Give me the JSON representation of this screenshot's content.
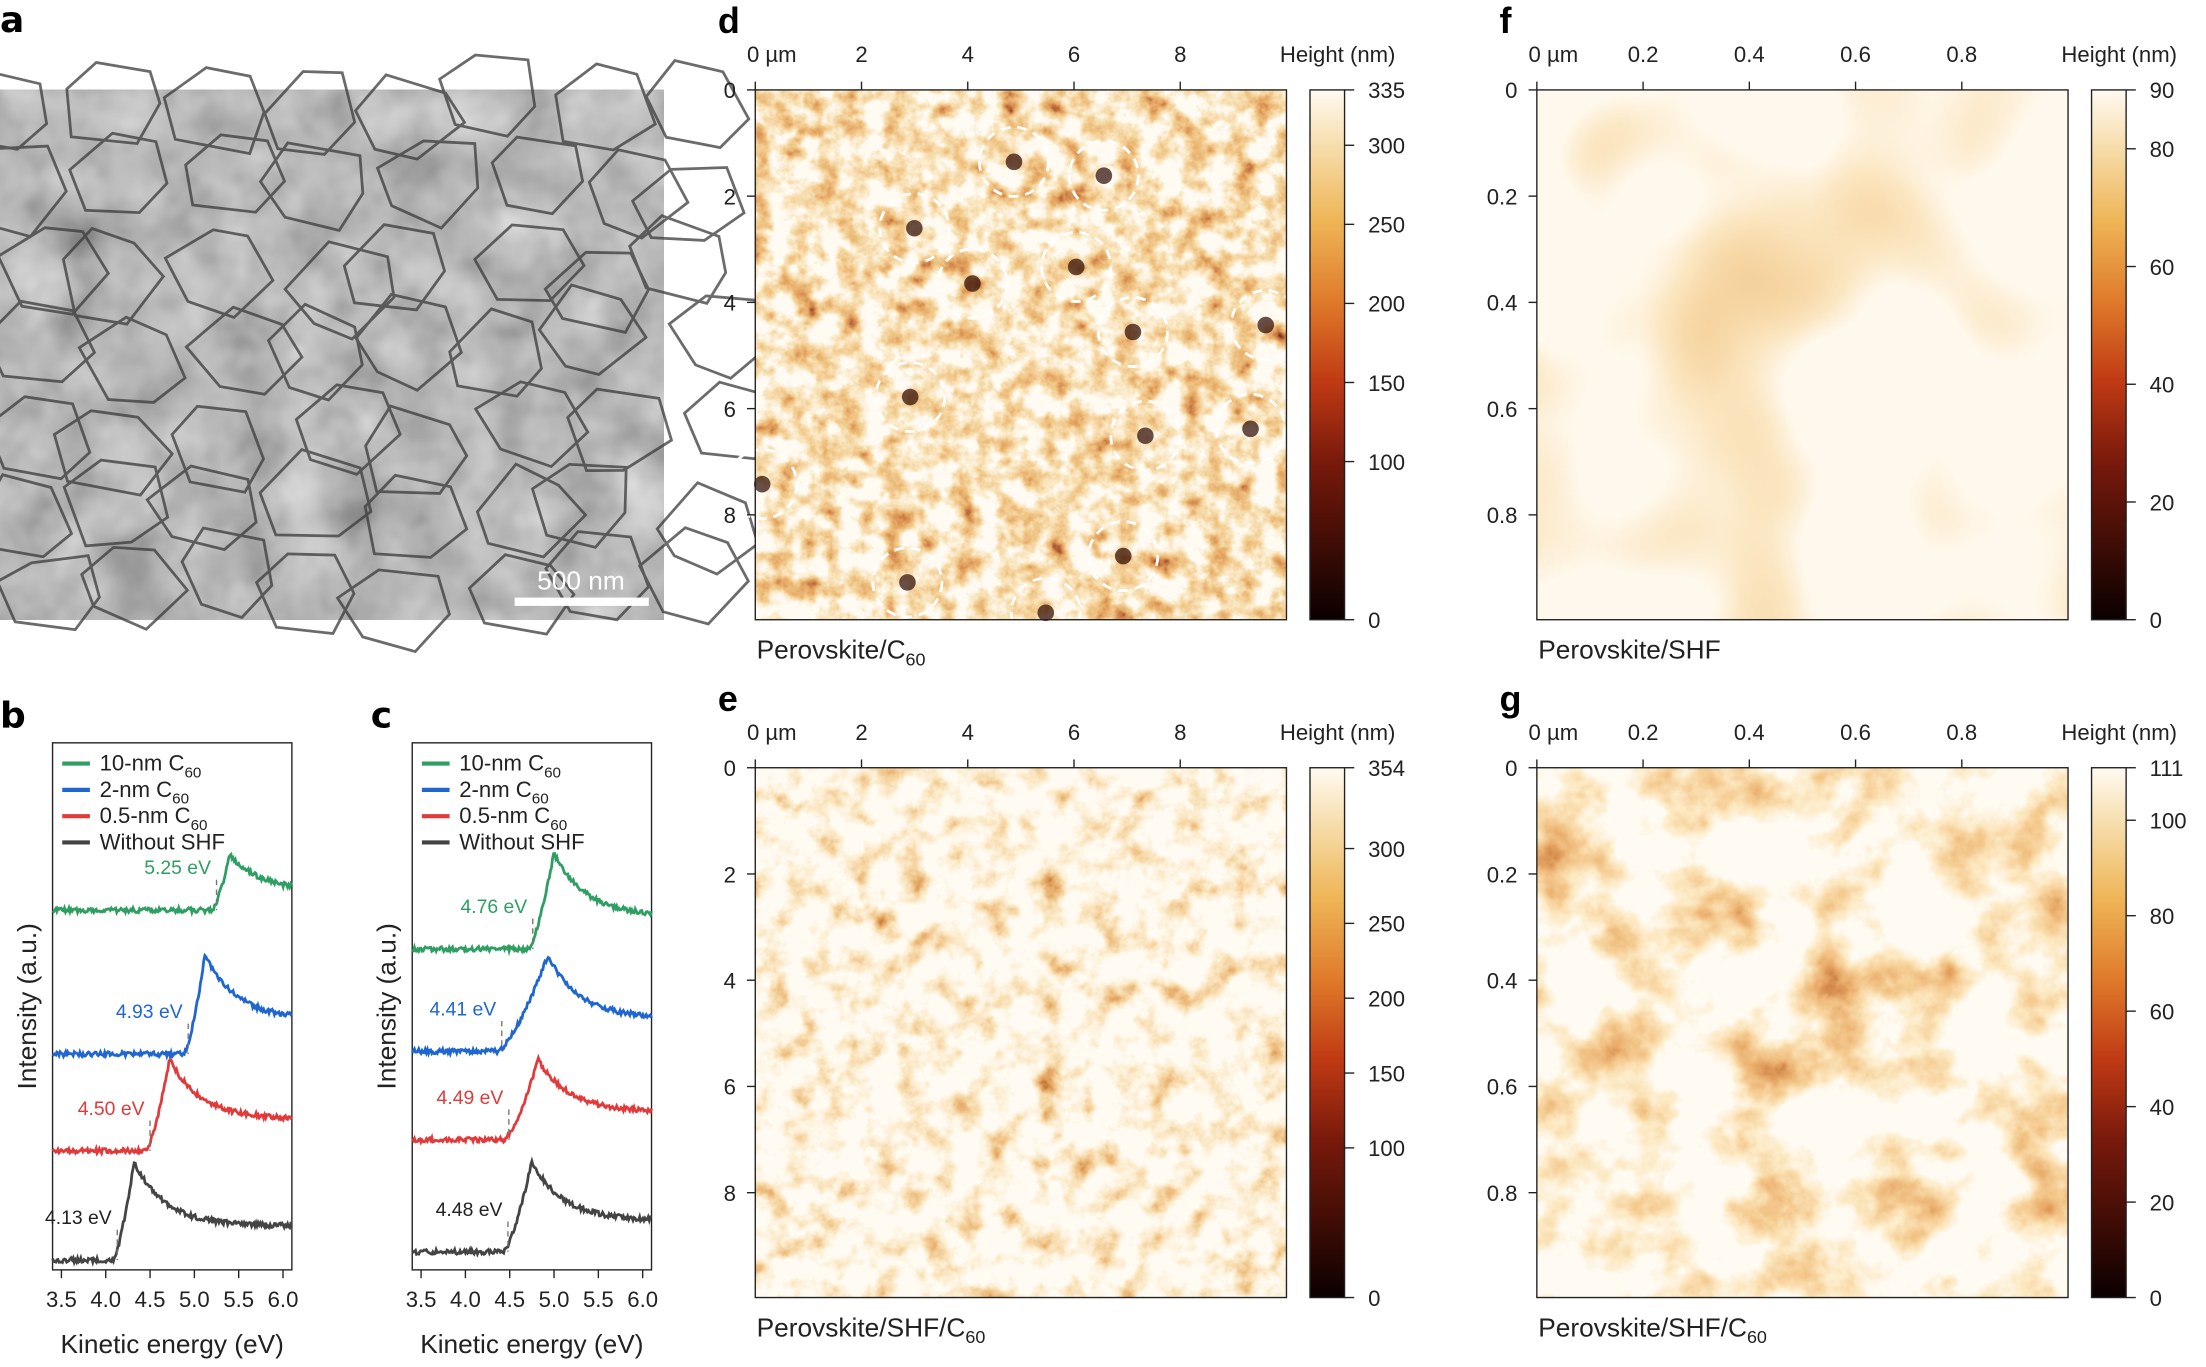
{
  "panels": {
    "a": {
      "label": "a",
      "scale_bar": "500 nm"
    },
    "b": {
      "label": "b"
    },
    "c": {
      "label": "c"
    },
    "d": {
      "label": "d",
      "caption_main": "Perovskite/C",
      "caption_sub": "60",
      "colorbar_title": "Height (nm)",
      "colorbar_ticks": [
        "335",
        "300",
        "250",
        "200",
        "150",
        "100",
        "0"
      ],
      "x_ticks": [
        "0 µm",
        "2",
        "4",
        "6",
        "8"
      ],
      "y_ticks": [
        "0",
        "2",
        "4",
        "6",
        "8"
      ]
    },
    "e": {
      "label": "e",
      "caption_main": "Perovskite/SHF/C",
      "caption_sub": "60",
      "colorbar_title": "Height (nm)",
      "colorbar_ticks": [
        "354",
        "300",
        "250",
        "200",
        "150",
        "100",
        "0"
      ],
      "x_ticks": [
        "0 µm",
        "2",
        "4",
        "6",
        "8"
      ],
      "y_ticks": [
        "0",
        "2",
        "4",
        "6",
        "8"
      ]
    },
    "f": {
      "label": "f",
      "caption_main": "Perovskite/SHF",
      "caption_sub": "",
      "colorbar_title": "Height (nm)",
      "colorbar_ticks": [
        "90",
        "80",
        "60",
        "40",
        "20",
        "0"
      ],
      "x_ticks": [
        "0 µm",
        "0.2",
        "0.4",
        "0.6",
        "0.8"
      ],
      "y_ticks": [
        "0",
        "0.2",
        "0.4",
        "0.6",
        "0.8"
      ]
    },
    "g": {
      "label": "g",
      "caption_main": "Perovskite/SHF/C",
      "caption_sub": "60",
      "colorbar_title": "Height (nm)",
      "colorbar_ticks": [
        "111",
        "100",
        "80",
        "60",
        "40",
        "20",
        "0"
      ],
      "x_ticks": [
        "0 µm",
        "0.2",
        "0.4",
        "0.6",
        "0.8"
      ],
      "y_ticks": [
        "0",
        "0.2",
        "0.4",
        "0.6",
        "0.8"
      ]
    }
  },
  "colors": {
    "green": "#2e9e63",
    "blue": "#1f66d1",
    "red": "#e03a3a",
    "gray": "#444444"
  },
  "chart_data": [
    {
      "panel": "b",
      "type": "line",
      "xlabel": "Kinetic energy (eV)",
      "ylabel": "Intensity (a.u.)",
      "xlim": [
        3.4,
        6.1
      ],
      "x_ticks": [
        "3.5",
        "4.0",
        "4.5",
        "5.0",
        "5.5",
        "6.0"
      ],
      "legend": "top-left",
      "series": [
        {
          "name": "10-nm C60",
          "legend_main": "10-nm C",
          "legend_sub": "60",
          "color": "#2e9e63",
          "onset": 5.25,
          "onset_label": "5.25 eV",
          "peak": 5.4
        },
        {
          "name": "2-nm C60",
          "legend_main": "2-nm C",
          "legend_sub": "60",
          "color": "#1f66d1",
          "onset": 4.93,
          "onset_label": "4.93 eV",
          "peak": 5.12
        },
        {
          "name": "0.5-nm C60",
          "legend_main": "0.5-nm C",
          "legend_sub": "60",
          "color": "#e03a3a",
          "onset": 4.5,
          "onset_label": "4.50 eV",
          "peak": 4.72
        },
        {
          "name": "Without SHF",
          "legend_main": "Without SHF",
          "legend_sub": "",
          "color": "#444444",
          "onset": 4.13,
          "onset_label": "4.13 eV",
          "peak": 4.32
        }
      ]
    },
    {
      "panel": "c",
      "type": "line",
      "xlabel": "Kinetic energy (eV)",
      "ylabel": "Intensity (a.u.)",
      "xlim": [
        3.4,
        6.1
      ],
      "x_ticks": [
        "3.5",
        "4.0",
        "4.5",
        "5.0",
        "5.5",
        "6.0"
      ],
      "legend": "top-left",
      "series": [
        {
          "name": "10-nm C60",
          "legend_main": "10-nm C",
          "legend_sub": "60",
          "color": "#2e9e63",
          "onset": 4.76,
          "onset_label": "4.76 eV",
          "peak": 5.0
        },
        {
          "name": "2-nm C60",
          "legend_main": "2-nm C",
          "legend_sub": "60",
          "color": "#1f66d1",
          "onset": 4.41,
          "onset_label": "4.41 eV",
          "peak": 4.93
        },
        {
          "name": "0.5-nm C60",
          "legend_main": "0.5-nm C",
          "legend_sub": "60",
          "color": "#e03a3a",
          "onset": 4.49,
          "onset_label": "4.49 eV",
          "peak": 4.82
        },
        {
          "name": "Without SHF",
          "legend_main": "Without SHF",
          "legend_sub": "",
          "color": "#444444",
          "onset": 4.48,
          "onset_label": "4.48 eV",
          "peak": 4.75
        }
      ]
    }
  ]
}
